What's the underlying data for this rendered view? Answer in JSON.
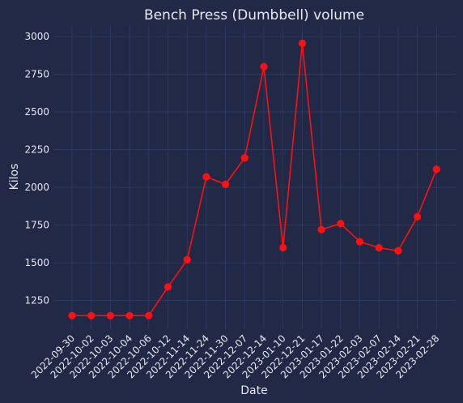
{
  "chart_data": {
    "type": "line",
    "title": "Bench Press (Dumbbell) volume",
    "xlabel": "Date",
    "ylabel": "Kilos",
    "grid": true,
    "series_color": "#ff1010",
    "background": "#212946",
    "ylim": [
      1060,
      3070
    ],
    "yticks": [
      1250,
      1500,
      1750,
      2000,
      2250,
      2500,
      2750,
      3000
    ],
    "x": [
      "2022-09-30",
      "2022-10-02",
      "2022-10-03",
      "2022-10-04",
      "2022-10-06",
      "2022-10-12",
      "2022-11-14",
      "2022-11-24",
      "2022-11-30",
      "2022-12-07",
      "2022-12-14",
      "2023-01-10",
      "2022-12-21",
      "2023-01-17",
      "2023-01-22",
      "2023-02-03",
      "2023-02-07",
      "2023-02-14",
      "2023-02-21",
      "2023-02-28"
    ],
    "values": [
      1150,
      1150,
      1150,
      1150,
      1150,
      1340,
      1520,
      2070,
      2020,
      2195,
      2800,
      1600,
      2955,
      1720,
      1760,
      1640,
      1600,
      1580,
      1805,
      2120
    ]
  }
}
